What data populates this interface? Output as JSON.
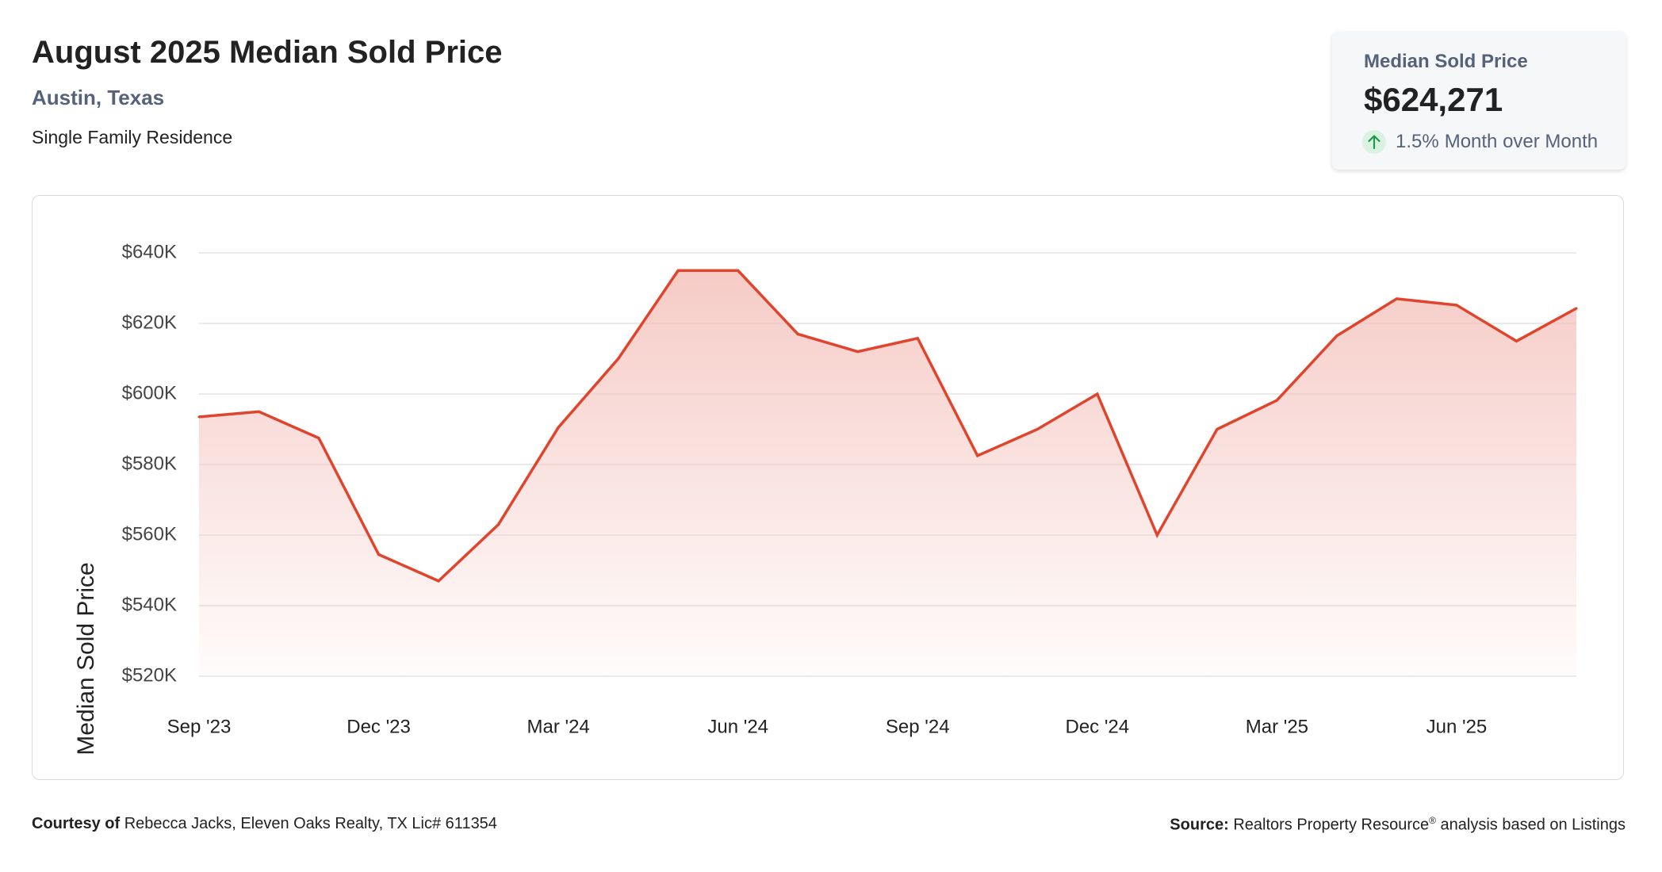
{
  "header": {
    "title": "August 2025 Median Sold Price",
    "location": "Austin, Texas",
    "subtitle": "Single Family Residence"
  },
  "stat_card": {
    "label": "Median Sold Price",
    "value": "$624,271",
    "change_value": "1.5%",
    "change_label": "Month over Month",
    "change_icon": "up-arrow-icon"
  },
  "footer": {
    "courtesy_label": "Courtesy of",
    "courtesy_text": "Rebecca Jacks, Eleven Oaks Realty, TX Lic# 611354",
    "source_label": "Source:",
    "source_text_1": "Realtors Property Resource",
    "source_mark": "®",
    "source_text_2": "analysis based on Listings"
  },
  "colors": {
    "line": "#e0442c",
    "fill": "#f4c2bc",
    "grid": "#e3e3e3",
    "up": "#1e9a4c"
  },
  "chart_data": {
    "type": "area",
    "ylabel": "Median Sold Price",
    "xlabel": "",
    "ylim": [
      520000,
      640000
    ],
    "yticks": [
      640000,
      620000,
      600000,
      580000,
      560000,
      540000,
      520000
    ],
    "ytick_labels": [
      "$640K",
      "$620K",
      "$600K",
      "$580K",
      "$560K",
      "$540K",
      "$520K"
    ],
    "xtick_labels": [
      "Sep '23",
      "Dec '23",
      "Mar '24",
      "Jun '24",
      "Sep '24",
      "Dec '24",
      "Mar '25",
      "Jun '25"
    ],
    "grid": true,
    "categories": [
      "Sep '23",
      "Oct '23",
      "Nov '23",
      "Dec '23",
      "Jan '24",
      "Feb '24",
      "Mar '24",
      "Apr '24",
      "May '24",
      "Jun '24",
      "Jul '24",
      "Aug '24",
      "Sep '24",
      "Oct '24",
      "Nov '24",
      "Dec '24",
      "Jan '25",
      "Feb '25",
      "Mar '25",
      "Apr '25",
      "May '25",
      "Jun '25",
      "Jul '25",
      "Aug '25"
    ],
    "values": [
      593500,
      595000,
      587500,
      554500,
      547000,
      563000,
      590500,
      610000,
      635000,
      635000,
      617000,
      612000,
      615800,
      582500,
      590000,
      600000,
      560000,
      590000,
      598200,
      616500,
      627000,
      625200,
      615000,
      624271
    ]
  }
}
